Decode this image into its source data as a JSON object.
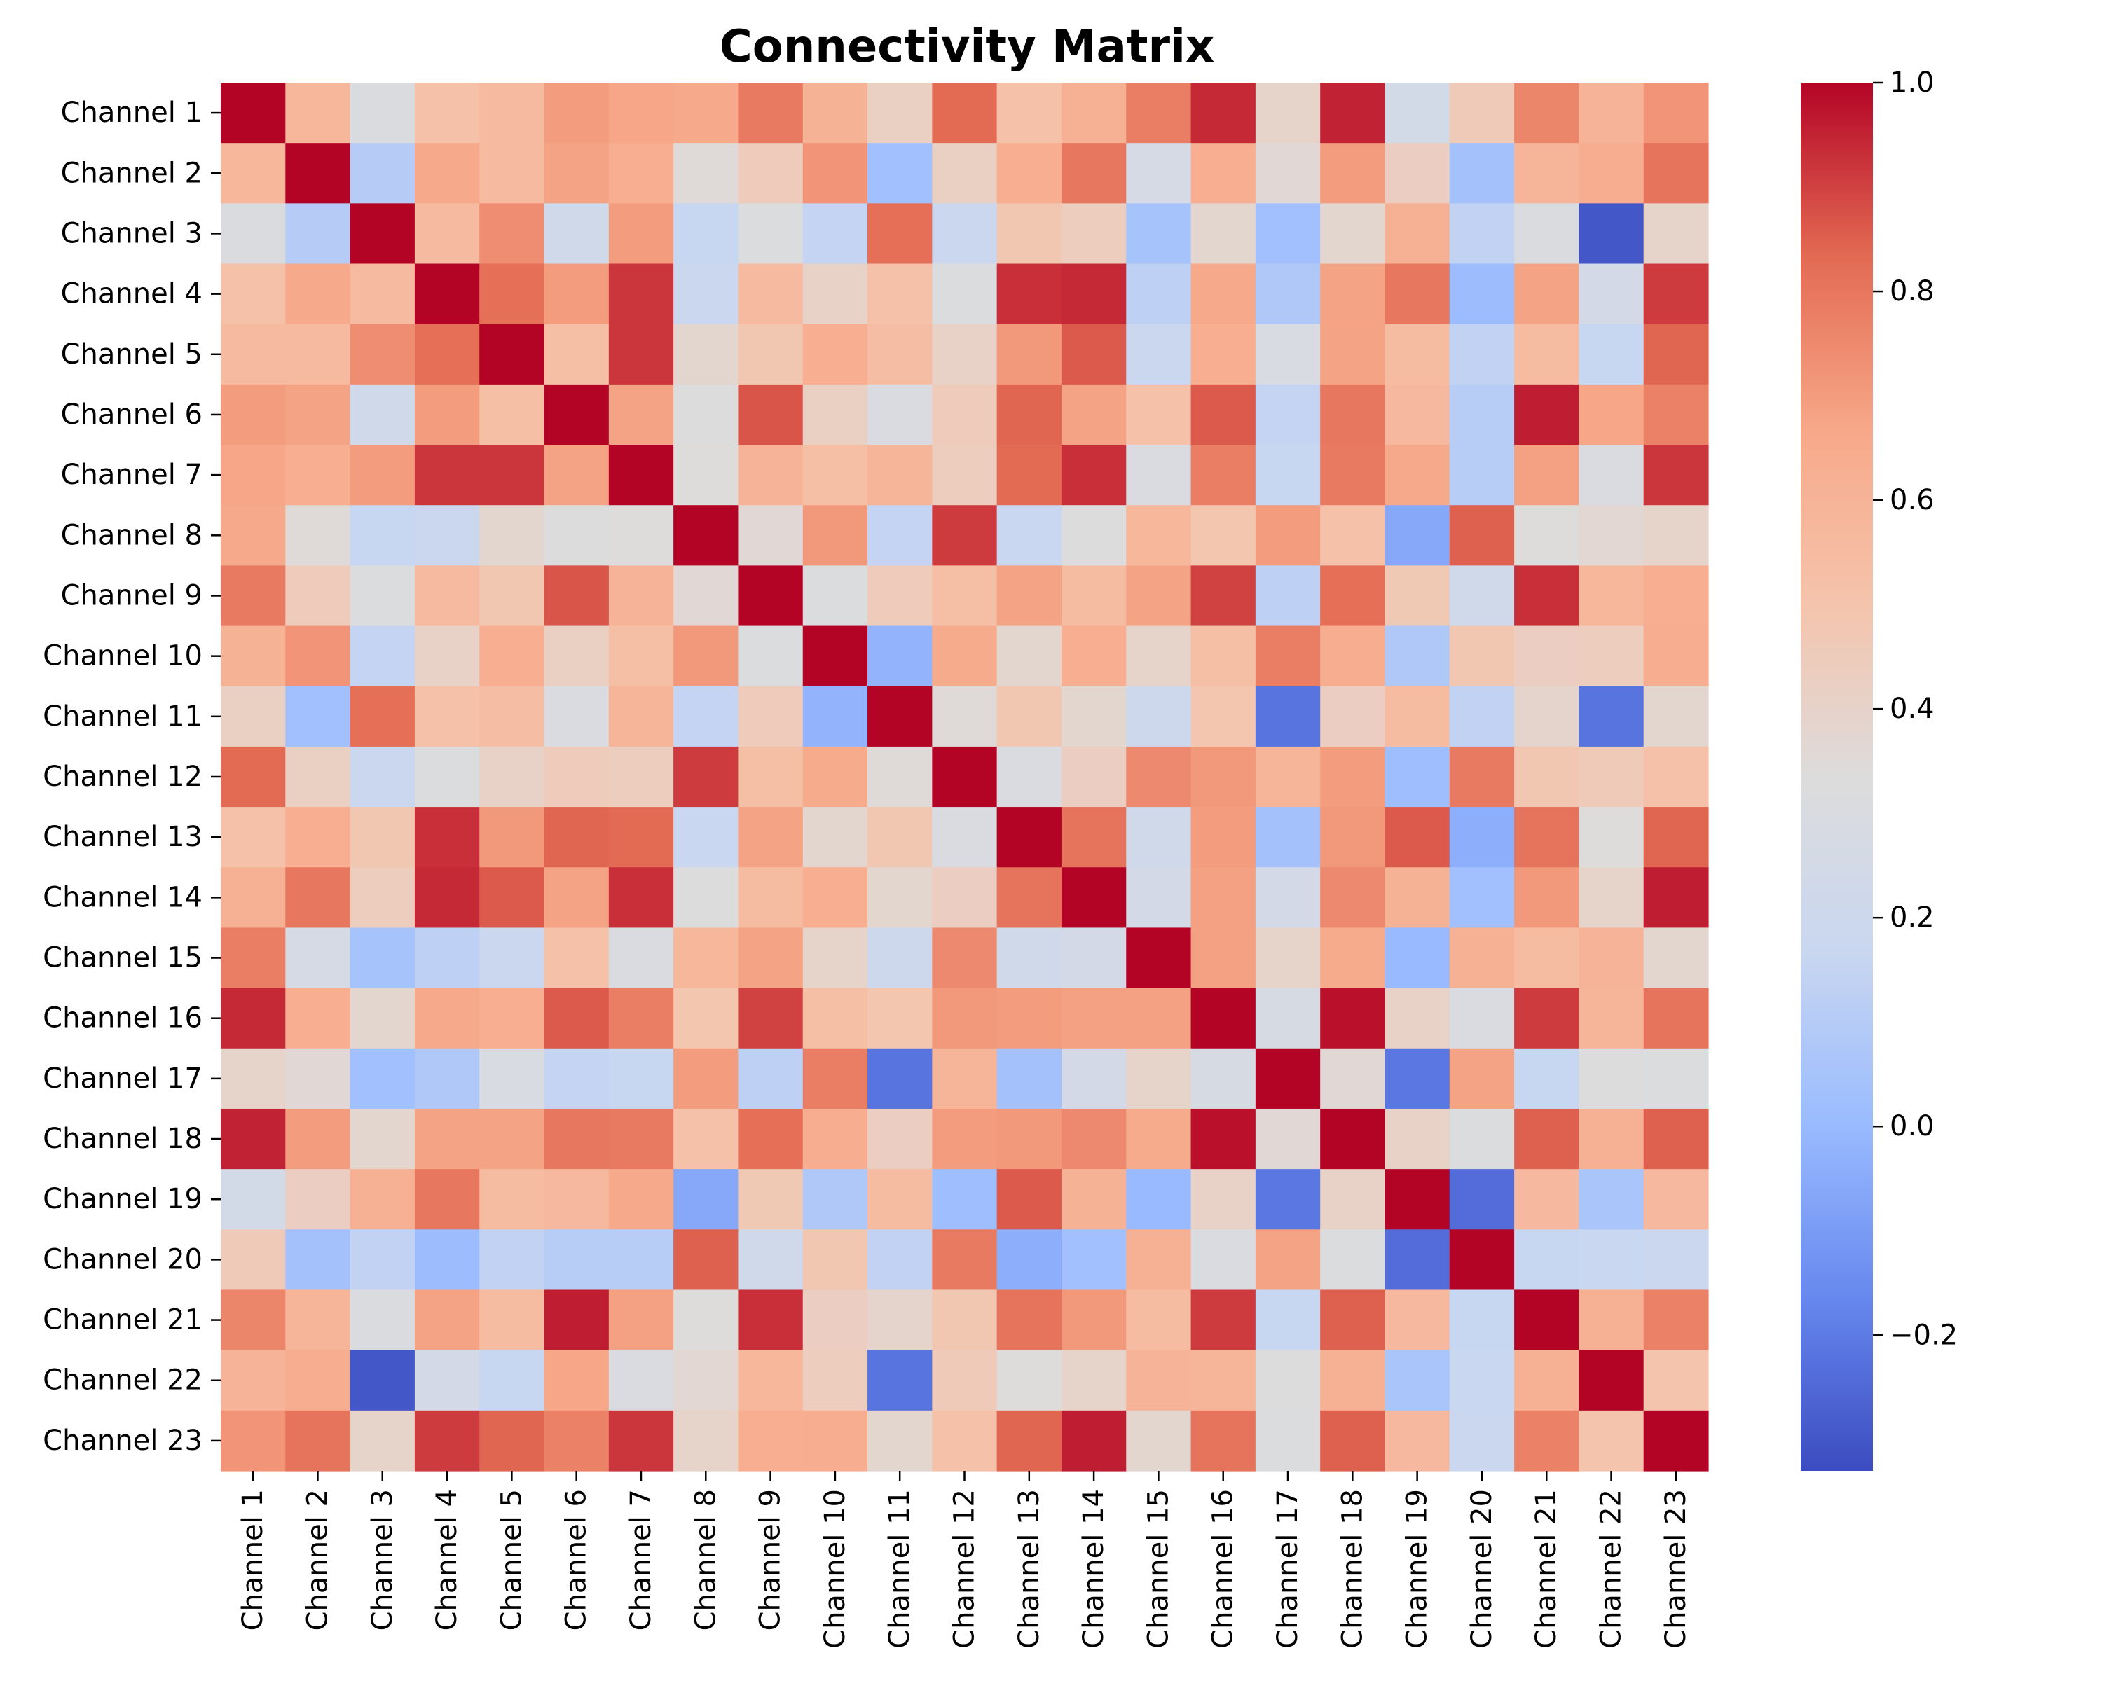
{
  "chart_data": {
    "type": "heatmap",
    "title": "Connectivity Matrix",
    "rows": [
      "Channel 1",
      "Channel 2",
      "Channel 3",
      "Channel 4",
      "Channel 5",
      "Channel 6",
      "Channel 7",
      "Channel 8",
      "Channel 9",
      "Channel 10",
      "Channel 11",
      "Channel 12",
      "Channel 13",
      "Channel 14",
      "Channel 15",
      "Channel 16",
      "Channel 17",
      "Channel 18",
      "Channel 19",
      "Channel 20",
      "Channel 21",
      "Channel 22",
      "Channel 23"
    ],
    "columns": [
      "Channel 1",
      "Channel 2",
      "Channel 3",
      "Channel 4",
      "Channel 5",
      "Channel 6",
      "Channel 7",
      "Channel 8",
      "Channel 9",
      "Channel 10",
      "Channel 11",
      "Channel 12",
      "Channel 13",
      "Channel 14",
      "Channel 15",
      "Channel 16",
      "Channel 17",
      "Channel 18",
      "Channel 19",
      "Channel 20",
      "Channel 21",
      "Channel 22",
      "Channel 23"
    ],
    "values": [
      [
        1.0,
        0.58,
        0.31,
        0.52,
        0.56,
        0.7,
        0.67,
        0.66,
        0.79,
        0.61,
        0.42,
        0.83,
        0.52,
        0.62,
        0.78,
        0.94,
        0.4,
        0.95,
        0.24,
        0.46,
        0.76,
        0.6,
        0.72
      ],
      [
        0.58,
        1.0,
        0.1,
        0.66,
        0.56,
        0.68,
        0.63,
        0.35,
        0.45,
        0.72,
        0.03,
        0.42,
        0.63,
        0.8,
        0.27,
        0.63,
        0.36,
        0.7,
        0.43,
        0.04,
        0.59,
        0.64,
        0.81
      ],
      [
        0.31,
        0.1,
        1.0,
        0.56,
        0.74,
        0.22,
        0.7,
        0.16,
        0.32,
        0.15,
        0.82,
        0.18,
        0.48,
        0.44,
        0.05,
        0.38,
        0.03,
        0.38,
        0.62,
        0.14,
        0.31,
        -0.3,
        0.4
      ],
      [
        0.52,
        0.66,
        0.56,
        1.0,
        0.82,
        0.7,
        0.92,
        0.18,
        0.56,
        0.41,
        0.52,
        0.32,
        0.93,
        0.94,
        0.13,
        0.66,
        0.08,
        0.68,
        0.8,
        0.01,
        0.68,
        0.25,
        0.91
      ],
      [
        0.56,
        0.56,
        0.74,
        0.82,
        1.0,
        0.53,
        0.92,
        0.38,
        0.48,
        0.63,
        0.54,
        0.41,
        0.71,
        0.86,
        0.18,
        0.63,
        0.29,
        0.68,
        0.55,
        0.14,
        0.55,
        0.16,
        0.84
      ],
      [
        0.7,
        0.68,
        0.22,
        0.7,
        0.53,
        1.0,
        0.68,
        0.33,
        0.87,
        0.42,
        0.3,
        0.45,
        0.84,
        0.68,
        0.52,
        0.86,
        0.15,
        0.8,
        0.57,
        0.11,
        0.96,
        0.67,
        0.77
      ],
      [
        0.67,
        0.63,
        0.7,
        0.92,
        0.92,
        0.68,
        1.0,
        0.34,
        0.6,
        0.53,
        0.59,
        0.44,
        0.83,
        0.93,
        0.3,
        0.78,
        0.16,
        0.79,
        0.66,
        0.11,
        0.69,
        0.3,
        0.92
      ],
      [
        0.66,
        0.35,
        0.16,
        0.18,
        0.38,
        0.33,
        0.34,
        1.0,
        0.36,
        0.71,
        0.15,
        0.91,
        0.17,
        0.33,
        0.58,
        0.49,
        0.7,
        0.52,
        -0.06,
        0.85,
        0.34,
        0.37,
        0.4
      ],
      [
        0.79,
        0.45,
        0.32,
        0.56,
        0.48,
        0.87,
        0.6,
        0.36,
        1.0,
        0.32,
        0.45,
        0.53,
        0.68,
        0.55,
        0.68,
        0.9,
        0.13,
        0.82,
        0.47,
        0.23,
        0.93,
        0.58,
        0.63
      ],
      [
        0.61,
        0.72,
        0.15,
        0.41,
        0.63,
        0.42,
        0.53,
        0.71,
        0.32,
        1.0,
        -0.02,
        0.65,
        0.38,
        0.63,
        0.4,
        0.53,
        0.78,
        0.64,
        0.08,
        0.48,
        0.43,
        0.44,
        0.64
      ],
      [
        0.42,
        0.03,
        0.82,
        0.52,
        0.54,
        0.3,
        0.59,
        0.15,
        0.45,
        -0.02,
        1.0,
        0.35,
        0.48,
        0.38,
        0.2,
        0.49,
        -0.22,
        0.43,
        0.55,
        0.14,
        0.39,
        -0.22,
        0.38
      ],
      [
        0.83,
        0.42,
        0.18,
        0.32,
        0.41,
        0.45,
        0.44,
        0.91,
        0.53,
        0.65,
        0.35,
        1.0,
        0.3,
        0.43,
        0.75,
        0.71,
        0.59,
        0.7,
        0.02,
        0.79,
        0.48,
        0.46,
        0.52
      ],
      [
        0.52,
        0.63,
        0.48,
        0.93,
        0.71,
        0.84,
        0.83,
        0.17,
        0.68,
        0.38,
        0.48,
        0.3,
        1.0,
        0.81,
        0.23,
        0.7,
        0.04,
        0.71,
        0.86,
        -0.04,
        0.81,
        0.34,
        0.84
      ],
      [
        0.62,
        0.8,
        0.44,
        0.94,
        0.86,
        0.68,
        0.93,
        0.33,
        0.55,
        0.63,
        0.38,
        0.43,
        0.81,
        1.0,
        0.25,
        0.69,
        0.25,
        0.75,
        0.61,
        0.03,
        0.71,
        0.4,
        0.96
      ],
      [
        0.78,
        0.27,
        0.05,
        0.13,
        0.18,
        0.52,
        0.3,
        0.58,
        0.68,
        0.4,
        0.2,
        0.75,
        0.23,
        0.25,
        1.0,
        0.69,
        0.4,
        0.65,
        0.0,
        0.62,
        0.55,
        0.6,
        0.38
      ],
      [
        0.94,
        0.63,
        0.38,
        0.66,
        0.63,
        0.86,
        0.78,
        0.49,
        0.9,
        0.53,
        0.49,
        0.71,
        0.7,
        0.69,
        0.69,
        1.0,
        0.28,
        0.98,
        0.41,
        0.3,
        0.91,
        0.59,
        0.81
      ],
      [
        0.4,
        0.36,
        0.03,
        0.08,
        0.29,
        0.15,
        0.16,
        0.7,
        0.13,
        0.78,
        -0.22,
        0.59,
        0.04,
        0.25,
        0.4,
        0.28,
        1.0,
        0.36,
        -0.21,
        0.68,
        0.16,
        0.33,
        0.32
      ],
      [
        0.95,
        0.7,
        0.38,
        0.68,
        0.68,
        0.8,
        0.79,
        0.52,
        0.82,
        0.64,
        0.43,
        0.7,
        0.71,
        0.75,
        0.65,
        0.98,
        0.36,
        1.0,
        0.41,
        0.32,
        0.85,
        0.62,
        0.85
      ],
      [
        0.24,
        0.43,
        0.62,
        0.8,
        0.55,
        0.57,
        0.66,
        -0.06,
        0.47,
        0.08,
        0.55,
        0.02,
        0.86,
        0.61,
        0.0,
        0.41,
        -0.21,
        0.41,
        1.0,
        -0.24,
        0.57,
        0.06,
        0.57
      ],
      [
        0.46,
        0.04,
        0.14,
        0.01,
        0.14,
        0.11,
        0.11,
        0.85,
        0.23,
        0.48,
        0.14,
        0.79,
        -0.04,
        0.03,
        0.62,
        0.3,
        0.68,
        0.32,
        -0.24,
        1.0,
        0.16,
        0.17,
        0.18
      ],
      [
        0.76,
        0.59,
        0.31,
        0.68,
        0.55,
        0.96,
        0.69,
        0.34,
        0.93,
        0.43,
        0.39,
        0.48,
        0.81,
        0.71,
        0.55,
        0.91,
        0.16,
        0.85,
        0.57,
        0.16,
        1.0,
        0.62,
        0.77
      ],
      [
        0.6,
        0.64,
        -0.3,
        0.25,
        0.16,
        0.67,
        0.3,
        0.37,
        0.58,
        0.44,
        -0.22,
        0.46,
        0.34,
        0.4,
        0.6,
        0.59,
        0.33,
        0.62,
        0.06,
        0.17,
        0.62,
        1.0,
        0.5
      ],
      [
        0.72,
        0.81,
        0.4,
        0.91,
        0.84,
        0.77,
        0.92,
        0.4,
        0.63,
        0.64,
        0.38,
        0.52,
        0.84,
        0.96,
        0.38,
        0.81,
        0.32,
        0.85,
        0.57,
        0.18,
        0.77,
        0.5,
        1.0
      ]
    ],
    "vmin": -0.33,
    "vmax": 1.0,
    "colormap": "coolwarm",
    "colormap_stops": [
      "#3b4cc0",
      "#6788ee",
      "#9abbff",
      "#c9d7f0",
      "#dddcdc",
      "#f5c4ac",
      "#f7a889",
      "#e36a53",
      "#b40426"
    ],
    "colorbar_ticks": [
      "1.0",
      "0.8",
      "0.6",
      "0.4",
      "0.2",
      "0.0",
      "−0.2"
    ],
    "colorbar_tick_values": [
      1.0,
      0.8,
      0.6,
      0.4,
      0.2,
      0.0,
      -0.2
    ]
  }
}
